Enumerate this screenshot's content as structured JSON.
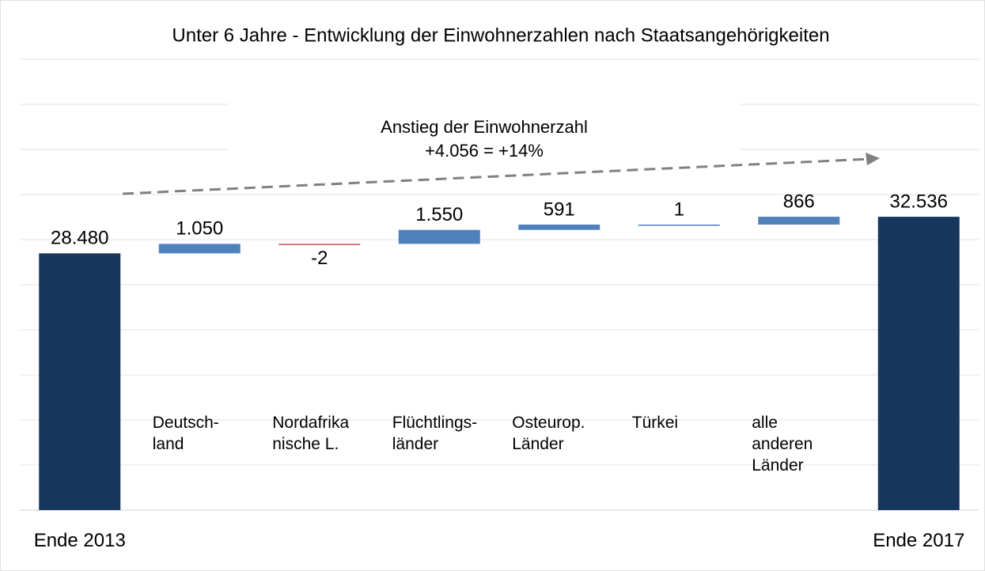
{
  "chart_data": {
    "type": "waterfall",
    "title": "Unter 6 Jahre - Entwicklung der Einwohnerzahlen nach Staatsangehörigkeiten",
    "annotation": [
      "Anstieg der Einwohnerzahl",
      "+4.056  =  +14%"
    ],
    "categories": [
      "Ende 2013",
      "Deutsch-\nland",
      "Nordafrika\nnische L.",
      "Flüchtlings-\nländer",
      "Osteurop.\nLänder",
      "Türkei",
      "alle\nanderen\nLänder",
      "Ende 2017"
    ],
    "measures": [
      "total",
      "relative",
      "relative",
      "relative",
      "relative",
      "relative",
      "relative",
      "total"
    ],
    "values": [
      28480,
      1050,
      -2,
      1550,
      591,
      1,
      866,
      32536
    ],
    "value_labels": [
      "28.480",
      "1.050",
      "-2",
      "1.550",
      "591",
      "1",
      "866",
      "32.536"
    ],
    "colors": {
      "total": "#17375e",
      "increase": "#4f81bd",
      "decrease": "#c0504d"
    },
    "ylim": [
      0,
      50000
    ],
    "grid": true
  }
}
